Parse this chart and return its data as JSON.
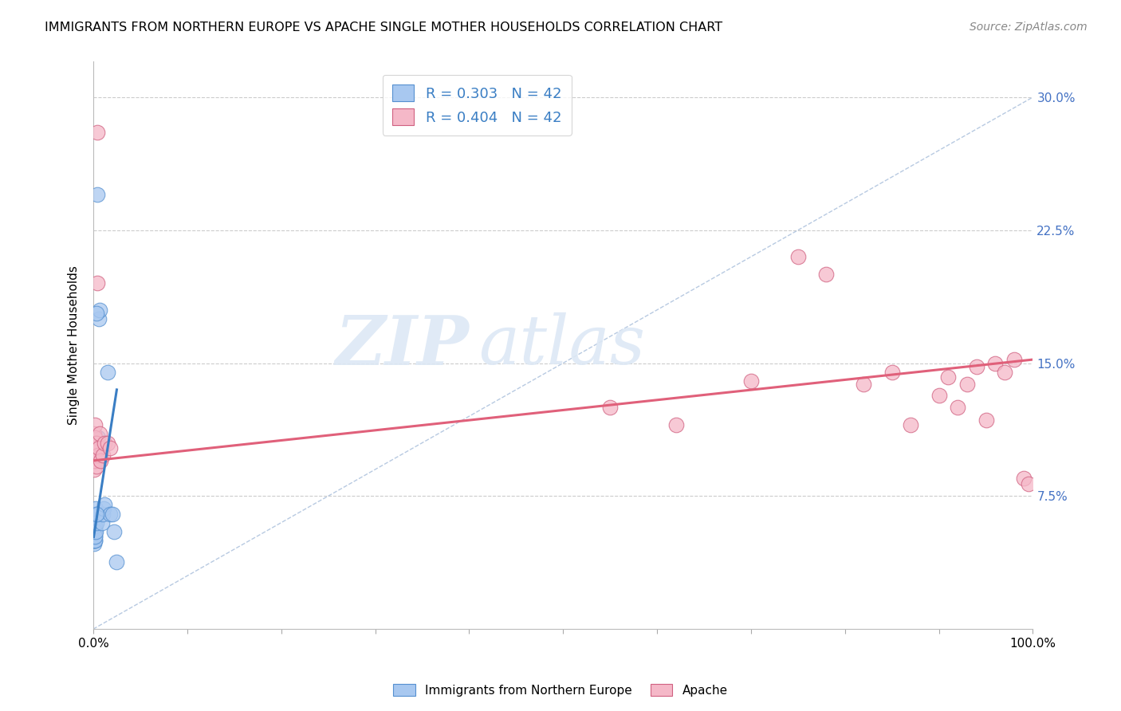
{
  "title": "IMMIGRANTS FROM NORTHERN EUROPE VS APACHE SINGLE MOTHER HOUSEHOLDS CORRELATION CHART",
  "source": "Source: ZipAtlas.com",
  "ylabel": "Single Mother Households",
  "xlim": [
    0,
    100
  ],
  "ylim": [
    0,
    32
  ],
  "yticks": [
    0,
    7.5,
    15.0,
    22.5,
    30.0
  ],
  "xticks": [
    0,
    10,
    20,
    30,
    40,
    50,
    60,
    70,
    80,
    90,
    100
  ],
  "blue_color": "#a8c8f0",
  "blue_edge_color": "#5590d0",
  "pink_color": "#f5b8c8",
  "pink_edge_color": "#d06080",
  "blue_line_color": "#3a7ec4",
  "pink_line_color": "#e0607a",
  "ref_line_color": "#b8c8e0",
  "legend_blue_r": "R = 0.303",
  "legend_blue_n": "N = 42",
  "legend_pink_r": "R = 0.404",
  "legend_pink_n": "N = 42",
  "watermark_zip": "ZIP",
  "watermark_atlas": "atlas",
  "blue_x": [
    0.05,
    0.06,
    0.07,
    0.08,
    0.09,
    0.1,
    0.1,
    0.11,
    0.12,
    0.13,
    0.14,
    0.15,
    0.15,
    0.16,
    0.17,
    0.18,
    0.19,
    0.2,
    0.21,
    0.22,
    0.25,
    0.28,
    0.3,
    0.35,
    0.4,
    0.48,
    0.55,
    0.62,
    0.7,
    0.8,
    0.9,
    1.0,
    1.1,
    1.2,
    1.5,
    1.8,
    2.0,
    2.2,
    2.5,
    0.42,
    0.32,
    0.38
  ],
  "blue_y": [
    4.8,
    5.0,
    5.2,
    5.0,
    5.2,
    5.5,
    6.0,
    5.3,
    5.5,
    5.8,
    5.0,
    5.5,
    6.2,
    5.8,
    5.2,
    5.0,
    5.5,
    5.8,
    5.2,
    5.5,
    6.5,
    6.8,
    6.0,
    9.5,
    10.5,
    6.5,
    10.8,
    17.5,
    18.0,
    9.8,
    6.0,
    6.5,
    6.8,
    7.0,
    14.5,
    6.5,
    6.5,
    5.5,
    3.8,
    24.5,
    17.8,
    6.5
  ],
  "pink_x": [
    0.05,
    0.06,
    0.07,
    0.08,
    0.1,
    0.12,
    0.14,
    0.16,
    0.18,
    0.2,
    0.25,
    0.3,
    0.35,
    0.4,
    0.5,
    0.6,
    0.7,
    0.8,
    1.0,
    1.2,
    1.5,
    1.8,
    55,
    62,
    70,
    75,
    78,
    82,
    85,
    87,
    90,
    91,
    92,
    93,
    94,
    95,
    96,
    97,
    98,
    99,
    99.5,
    0.45
  ],
  "pink_y": [
    9.0,
    9.5,
    10.0,
    10.5,
    11.0,
    9.8,
    10.2,
    9.5,
    11.5,
    10.8,
    10.5,
    9.2,
    10.5,
    28.0,
    9.8,
    10.2,
    11.0,
    9.5,
    9.8,
    10.5,
    10.5,
    10.2,
    12.5,
    11.5,
    14.0,
    21.0,
    20.0,
    13.8,
    14.5,
    11.5,
    13.2,
    14.2,
    12.5,
    13.8,
    14.8,
    11.8,
    15.0,
    14.5,
    15.2,
    8.5,
    8.2,
    19.5
  ],
  "blue_line_x": [
    0.05,
    2.5
  ],
  "blue_line_y": [
    5.2,
    13.5
  ],
  "pink_line_x": [
    0,
    100
  ],
  "pink_line_y": [
    9.5,
    15.2
  ]
}
